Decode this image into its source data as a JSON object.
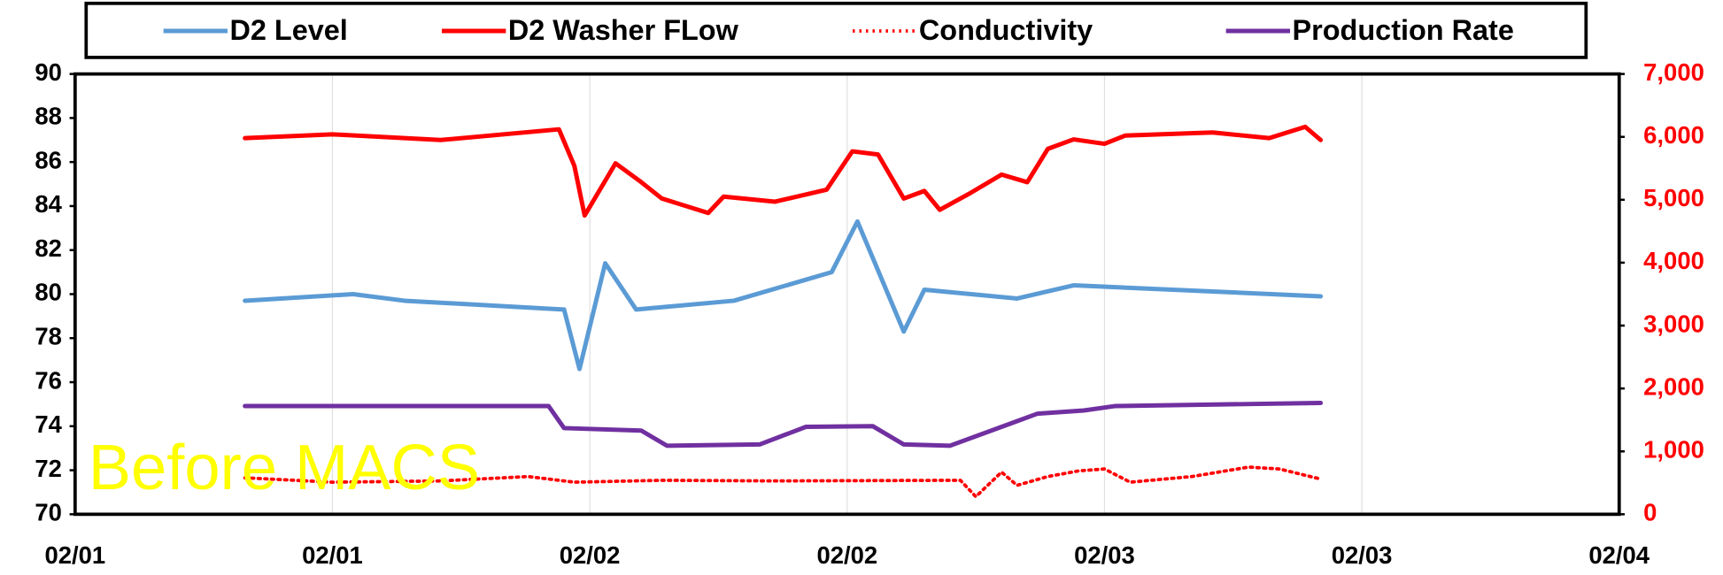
{
  "chart_data": {
    "type": "line",
    "xlim": [
      0,
      3
    ],
    "xticks": [
      {
        "value": 0,
        "label": "02/01"
      },
      {
        "value": 0.5,
        "label": "02/01"
      },
      {
        "value": 1,
        "label": "02/02"
      },
      {
        "value": 1.5,
        "label": "02/02"
      },
      {
        "value": 2,
        "label": "02/03"
      },
      {
        "value": 2.5,
        "label": "02/03"
      },
      {
        "value": 3,
        "label": "02/04"
      }
    ],
    "ylim": [
      70,
      90
    ],
    "yticks": [
      70,
      72,
      74,
      76,
      78,
      80,
      82,
      84,
      86,
      88,
      90
    ],
    "y2lim": [
      0,
      7000
    ],
    "y2ticks": [
      0,
      {
        "value": 1000,
        "label": "1,000"
      },
      {
        "value": 2000,
        "label": "2,000"
      },
      {
        "value": 3000,
        "label": "3,000"
      },
      {
        "value": 4000,
        "label": "4,000"
      },
      {
        "value": 5000,
        "label": "5,000"
      },
      {
        "value": 6000,
        "label": "6,000"
      },
      {
        "value": 7000,
        "label": "7,000"
      }
    ],
    "y2_color": "#ff0000",
    "grid": "x",
    "legend": "top",
    "annotation": "Before MACS",
    "annotation_color": "#ffff00",
    "series": [
      {
        "name": "D2 Level",
        "color": "#5b9bd5",
        "x": [
          0.33,
          0.54,
          0.64,
          0.95,
          0.98,
          1.03,
          1.09,
          1.28,
          1.47,
          1.52,
          1.61,
          1.65,
          1.83,
          1.94,
          2.42
        ],
        "values": [
          79.7,
          80.0,
          79.7,
          79.3,
          76.6,
          81.4,
          79.3,
          79.7,
          81.0,
          83.3,
          78.3,
          80.2,
          79.8,
          80.4,
          79.9
        ]
      },
      {
        "name": "D2 Washer FLow",
        "color": "#ff0000",
        "axis": "y2",
        "x": [
          0.33,
          0.5,
          0.71,
          0.94,
          0.97,
          0.99,
          1.05,
          1.1,
          1.14,
          1.23,
          1.26,
          1.36,
          1.46,
          1.51,
          1.56,
          1.61,
          1.65,
          1.68,
          1.74,
          1.8,
          1.85,
          1.89,
          1.94,
          2.0,
          2.04,
          2.21,
          2.32,
          2.39,
          2.42
        ],
        "values": [
          5980,
          6040,
          5950,
          6120,
          5540,
          4750,
          5580,
          5280,
          5020,
          4790,
          5050,
          4970,
          5160,
          5770,
          5720,
          5020,
          5140,
          4840,
          5110,
          5400,
          5280,
          5810,
          5960,
          5890,
          6020,
          6070,
          5980,
          6160,
          5950
        ]
      },
      {
        "name": "Conductivity",
        "color": "#ff0000",
        "axis": "y2",
        "style": "dotted",
        "x": [
          0.33,
          0.5,
          0.71,
          0.88,
          0.97,
          1.14,
          1.36,
          1.72,
          1.75,
          1.8,
          1.83,
          1.89,
          1.95,
          2.0,
          2.05,
          2.17,
          2.28,
          2.34,
          2.42
        ],
        "values": [
          580,
          510,
          530,
          600,
          510,
          540,
          530,
          540,
          280,
          670,
          460,
          600,
          690,
          720,
          510,
          600,
          750,
          720,
          560
        ]
      },
      {
        "name": "Production Rate",
        "color": "#7030a0",
        "axis": "y2",
        "x": [
          0.33,
          0.92,
          0.95,
          1.1,
          1.15,
          1.33,
          1.42,
          1.55,
          1.61,
          1.7,
          1.87,
          1.96,
          2.02,
          2.42
        ],
        "values": [
          1720,
          1720,
          1370,
          1330,
          1090,
          1110,
          1390,
          1400,
          1110,
          1090,
          1600,
          1650,
          1720,
          1770
        ]
      }
    ]
  }
}
